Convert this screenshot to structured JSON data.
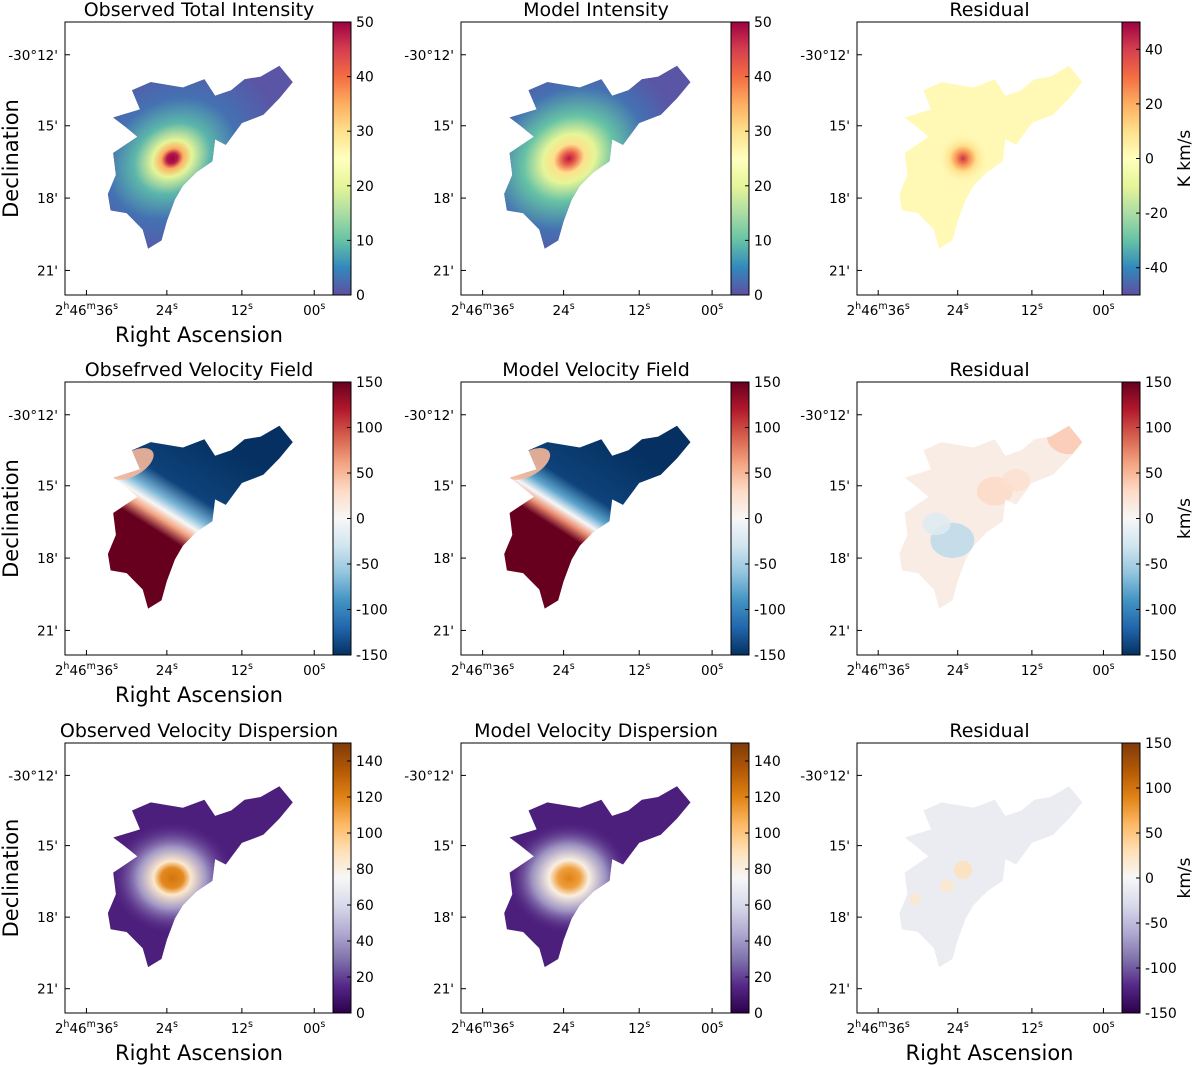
{
  "figure": {
    "x_axis_label": "Right Ascension",
    "y_axis_label": "Declination",
    "x_ticks": [
      {
        "h": "2",
        "m": "46",
        "s": "36"
      },
      {
        "s": "24"
      },
      {
        "s": "12"
      },
      {
        "s": "00"
      }
    ],
    "y_ticks": [
      "-30°12'",
      "15'",
      "18'",
      "21'"
    ]
  },
  "chart_data": [
    {
      "id": "p11",
      "type": "heatmap",
      "title": "Observed Total Intensity",
      "field": "intensity",
      "variant": "observed",
      "colormap": "spectral",
      "clim": [
        0,
        50
      ],
      "cbar_ticks": [
        0,
        10,
        20,
        30,
        40,
        50
      ],
      "cbar_label": "",
      "xlabel": "Right Ascension",
      "ylabel": "Declination"
    },
    {
      "id": "p12",
      "type": "heatmap",
      "title": "Model Intensity",
      "field": "intensity",
      "variant": "model",
      "colormap": "spectral",
      "clim": [
        0,
        50
      ],
      "cbar_ticks": [
        0,
        10,
        20,
        30,
        40,
        50
      ],
      "cbar_label": "",
      "xlabel": "",
      "ylabel": ""
    },
    {
      "id": "p13",
      "type": "heatmap",
      "title": "Residual",
      "field": "intensity",
      "variant": "residual",
      "colormap": "spectral",
      "clim": [
        -50,
        50
      ],
      "cbar_ticks": [
        -40,
        -20,
        0,
        20,
        40
      ],
      "cbar_label": "K km/s",
      "xlabel": "",
      "ylabel": ""
    },
    {
      "id": "p21",
      "type": "heatmap",
      "title": "Obsefrved Velocity Field",
      "field": "velocity",
      "variant": "observed",
      "colormap": "rdbu",
      "clim": [
        -150,
        150
      ],
      "cbar_ticks": [
        -150,
        -100,
        -50,
        0,
        50,
        100,
        150
      ],
      "cbar_label": "",
      "xlabel": "Right Ascension",
      "ylabel": "Declination"
    },
    {
      "id": "p22",
      "type": "heatmap",
      "title": "Model Velocity Field",
      "field": "velocity",
      "variant": "model",
      "colormap": "rdbu",
      "clim": [
        -150,
        150
      ],
      "cbar_ticks": [
        -150,
        -100,
        -50,
        0,
        50,
        100,
        150
      ],
      "cbar_label": "",
      "xlabel": "",
      "ylabel": ""
    },
    {
      "id": "p23",
      "type": "heatmap",
      "title": "Residual",
      "field": "velocity",
      "variant": "residual",
      "colormap": "rdbu",
      "clim": [
        -150,
        150
      ],
      "cbar_ticks": [
        -150,
        -100,
        -50,
        0,
        50,
        100,
        150
      ],
      "cbar_label": "km/s",
      "xlabel": "",
      "ylabel": ""
    },
    {
      "id": "p31",
      "type": "heatmap",
      "title": "Observed Velocity Dispersion",
      "field": "dispersion",
      "variant": "observed",
      "colormap": "puor",
      "clim": [
        0,
        150
      ],
      "cbar_ticks": [
        0,
        20,
        40,
        60,
        80,
        100,
        120,
        140
      ],
      "cbar_label": "",
      "xlabel": "Right Ascension",
      "ylabel": "Declination"
    },
    {
      "id": "p32",
      "type": "heatmap",
      "title": "Model Velocity Dispersion",
      "field": "dispersion",
      "variant": "model",
      "colormap": "puor",
      "clim": [
        0,
        150
      ],
      "cbar_ticks": [
        0,
        20,
        40,
        60,
        80,
        100,
        120,
        140
      ],
      "cbar_label": "",
      "xlabel": "",
      "ylabel": ""
    },
    {
      "id": "p33",
      "type": "heatmap",
      "title": "Residual",
      "field": "dispersion",
      "variant": "residual",
      "colormap": "puor",
      "clim": [
        -150,
        150
      ],
      "cbar_ticks": [
        -150,
        -100,
        -50,
        0,
        50,
        100,
        150
      ],
      "cbar_label": "km/s",
      "xlabel": "Right Ascension",
      "ylabel": ""
    }
  ]
}
